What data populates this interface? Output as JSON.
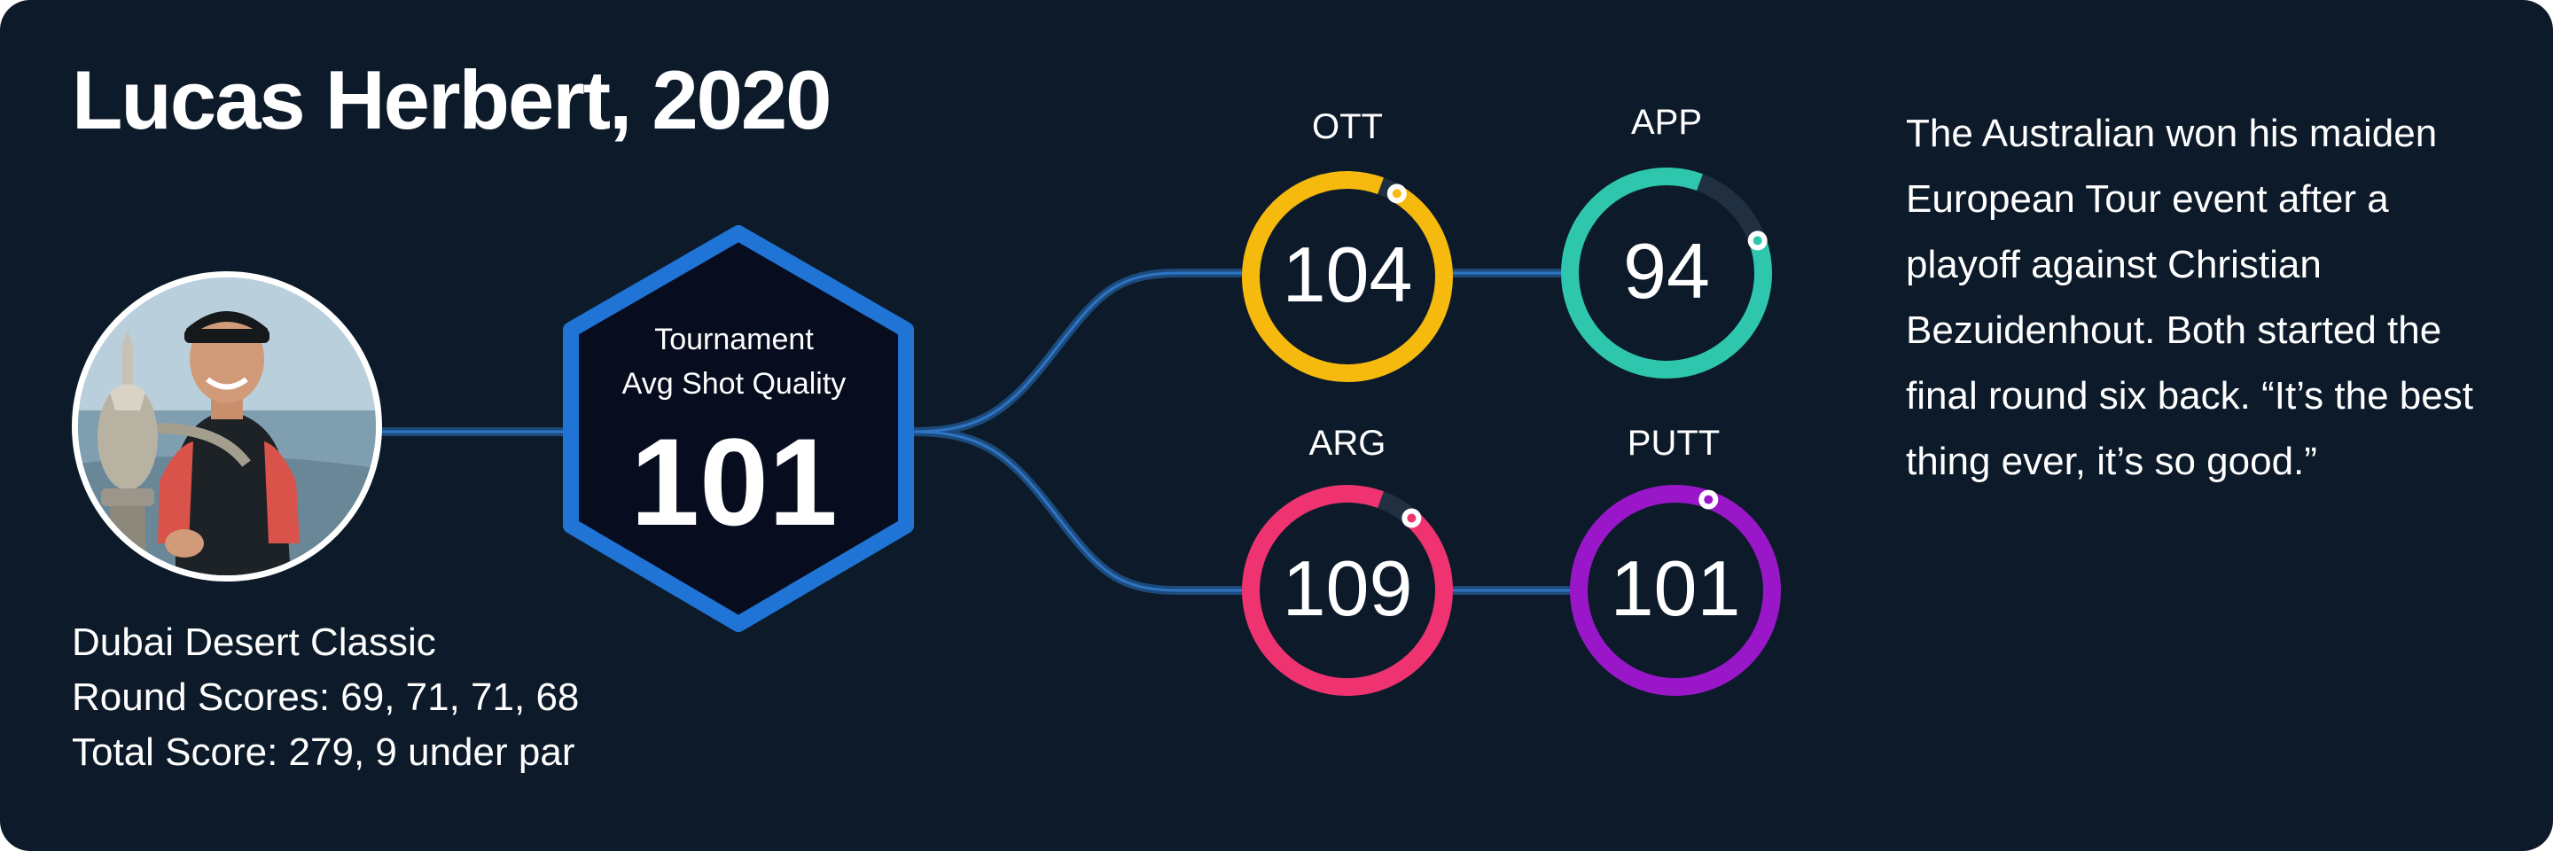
{
  "title": "Lucas Herbert, 2020",
  "tournament": {
    "name": "Dubai Desert Classic",
    "round_scores": "Round Scores: 69, 71, 71, 68",
    "total_score": "Total Score: 279, 9 under par"
  },
  "hexagon": {
    "label_line1": "Tournament",
    "label_line2": "Avg Shot Quality",
    "value": "101",
    "color": "#1f74d6"
  },
  "metrics": [
    {
      "name": "OTT",
      "value": "104",
      "progress": 0.97,
      "color": "#f6b90d"
    },
    {
      "name": "APP",
      "value": "94",
      "progress": 0.86,
      "color": "#2ec7ad"
    },
    {
      "name": "ARG",
      "value": "109",
      "progress": 0.94,
      "color": "#ef3370"
    },
    {
      "name": "PUTT",
      "value": "101",
      "progress": 1.0,
      "color": "#9a17c9"
    }
  ],
  "summary": "The Australian won his maiden European Tour event after a playoff against Christian Bezuidenhout. Both started the final round six back. “It’s the best thing ever, it’s so good.”",
  "colors": {
    "background": "#0c1a29",
    "track": "#203040",
    "connector": "#1c4a7a"
  }
}
